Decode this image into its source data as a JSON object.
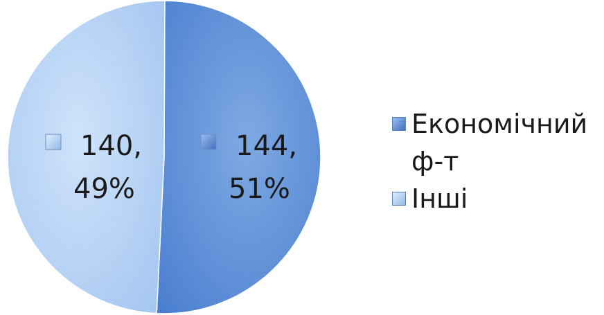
{
  "chart_data": {
    "type": "pie",
    "slices": [
      {
        "name": "Економічний ф-т",
        "value": 144,
        "percent": 51,
        "label_value": "144,",
        "label_percent": "51%",
        "color_light": "#7fa9e3",
        "color_dark": "#4a7fd0",
        "legend_color": "#4f7fcc"
      },
      {
        "name": "Інші",
        "value": 140,
        "percent": 49,
        "label_value": "140,",
        "label_percent": "49%",
        "color_light": "#cfe3fb",
        "color_dark": "#a3c5f0",
        "legend_color": "#98c0ee"
      }
    ],
    "legend_position": "right"
  },
  "legend": {
    "items": [
      {
        "label": "Економічний ф-т"
      },
      {
        "label": "Інші"
      }
    ]
  }
}
